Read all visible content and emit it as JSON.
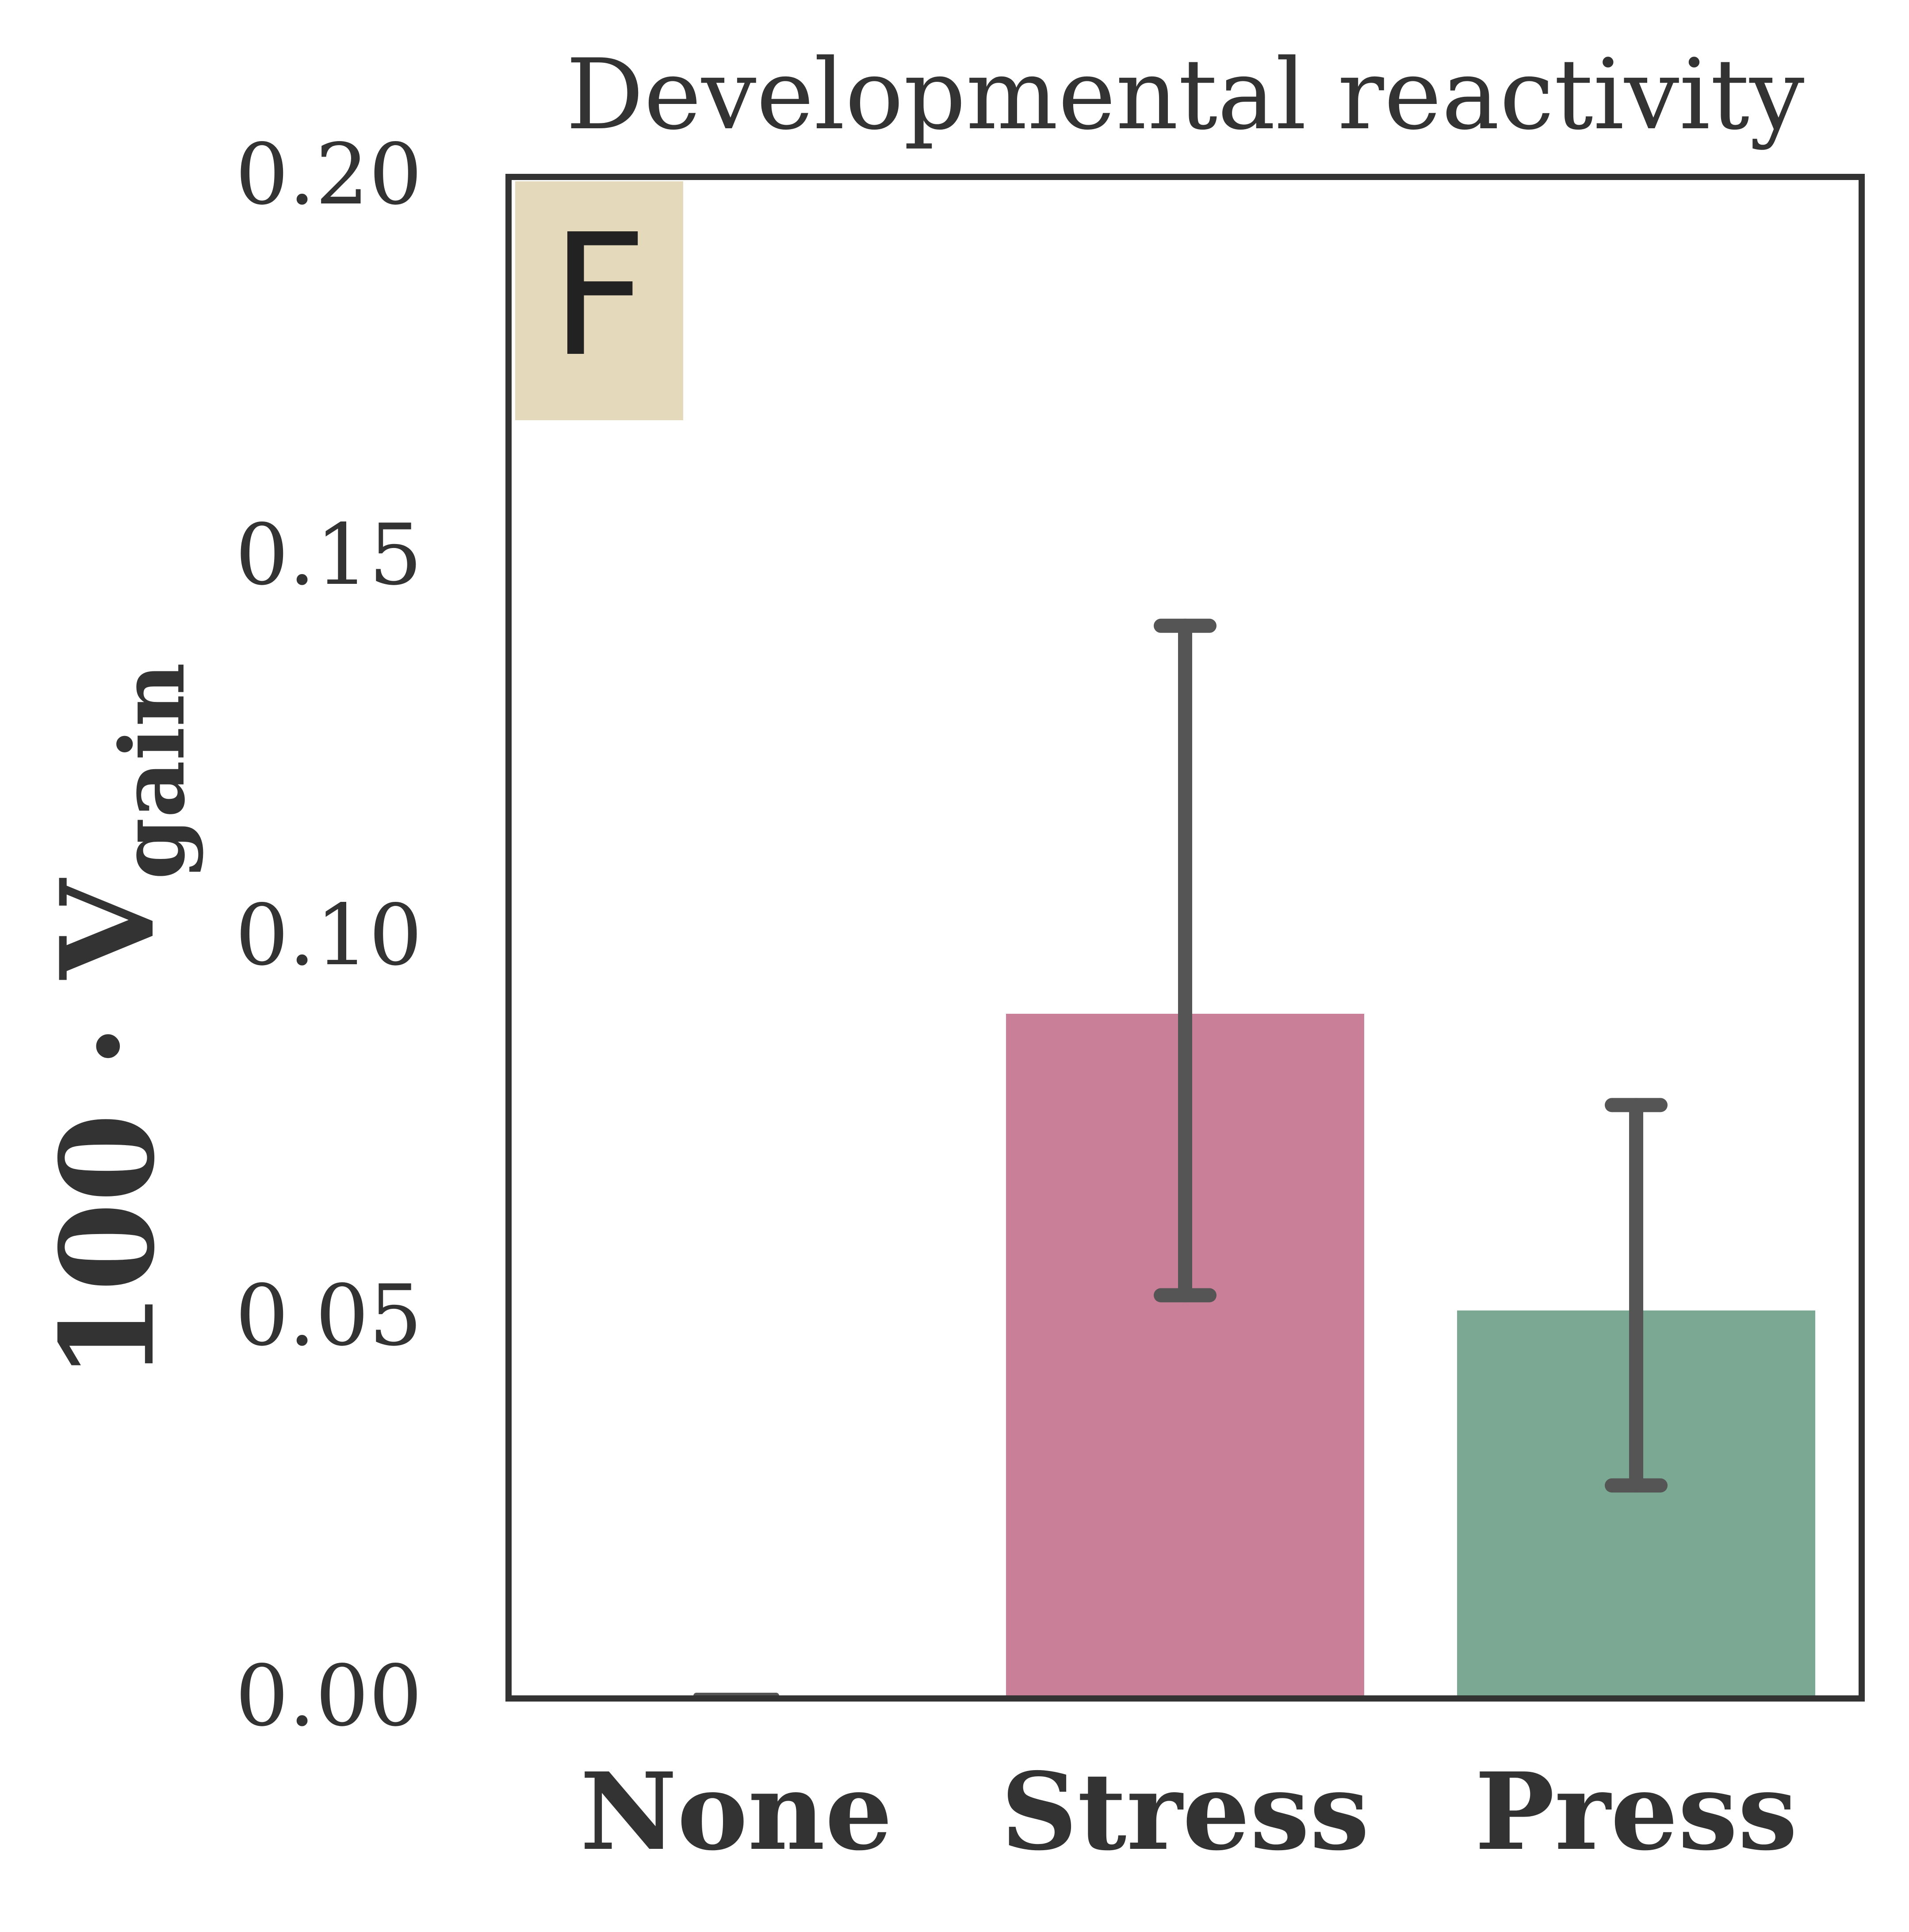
{
  "chart_data": {
    "type": "bar",
    "title": "Developmental reactivity",
    "panel_label": "F",
    "ylabel_main": "100 · V",
    "ylabel_sub": "gain",
    "xlabel": "",
    "ylim": [
      0,
      0.2
    ],
    "yticks": [
      "0.00",
      "0.05",
      "0.10",
      "0.15",
      "0.20"
    ],
    "categories": [
      "None",
      "Stress",
      "Press"
    ],
    "values": [
      0.0,
      0.09,
      0.051
    ],
    "error_low": [
      0.0,
      0.053,
      0.028
    ],
    "error_high": [
      0.0,
      0.141,
      0.078
    ],
    "colors": {
      "None": "#d9d9d9",
      "Stress": "#c87f97",
      "Press": "#7ba893",
      "error_bar": "#555555",
      "axes": "#333333",
      "panel_label_bg": "#e5d9bb"
    }
  }
}
